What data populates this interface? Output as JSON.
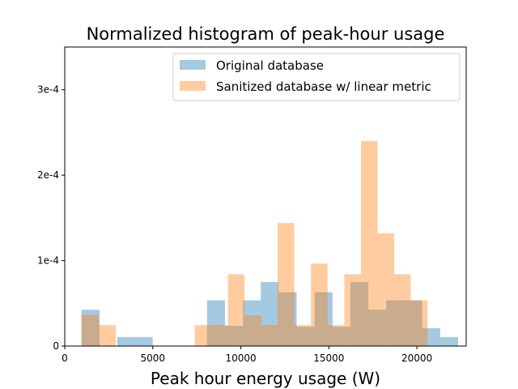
{
  "chart_data": {
    "type": "bar",
    "title": "Normalized histogram of peak-hour usage",
    "xlabel": "Peak hour energy usage (W)",
    "ylabel": "",
    "xlim": [
      0,
      22800
    ],
    "ylim": [
      0,
      0.00035
    ],
    "x_ticks": [
      0,
      5000,
      10000,
      15000,
      20000
    ],
    "x_tick_labels": [
      "0",
      "5000",
      "10000",
      "15000",
      "20000"
    ],
    "y_ticks": [
      0,
      0.0001,
      0.0002,
      0.0003
    ],
    "y_tick_labels": [
      "0",
      "1e-4",
      "2e-4",
      "3e-4"
    ],
    "legend_position": "top-right",
    "grid": false,
    "series": [
      {
        "name": "Original database",
        "color": "#1f77b4",
        "opacity": 0.4,
        "bins": [
          {
            "x0": 950,
            "x1": 1980,
            "value": 4.25e-05
          },
          {
            "x0": 2980,
            "x1": 5000,
            "value": 1.05e-05
          },
          {
            "x0": 8080,
            "x1": 9100,
            "value": 5.35e-05
          },
          {
            "x0": 9100,
            "x1": 10120,
            "value": 2.35e-05
          },
          {
            "x0": 10120,
            "x1": 11130,
            "value": 5.35e-05
          },
          {
            "x0": 11130,
            "x1": 12150,
            "value": 7.5e-05
          },
          {
            "x0": 12150,
            "x1": 13170,
            "value": 6.3e-05
          },
          {
            "x0": 13170,
            "x1": 14190,
            "value": 2.25e-05
          },
          {
            "x0": 14190,
            "x1": 15210,
            "value": 6.3e-05
          },
          {
            "x0": 15210,
            "x1": 16220,
            "value": 2.25e-05
          },
          {
            "x0": 16220,
            "x1": 17240,
            "value": 7.5e-05
          },
          {
            "x0": 17240,
            "x1": 18260,
            "value": 4.25e-05
          },
          {
            "x0": 18260,
            "x1": 19280,
            "value": 5.35e-05
          },
          {
            "x0": 19280,
            "x1": 20300,
            "value": 5.35e-05
          },
          {
            "x0": 20300,
            "x1": 21320,
            "value": 2.1e-05
          },
          {
            "x0": 21320,
            "x1": 22340,
            "value": 1.05e-05
          }
        ]
      },
      {
        "name": "Sanitized database w/ linear metric",
        "color": "#ff7f0e",
        "opacity": 0.4,
        "bins": [
          {
            "x0": 950,
            "x1": 1930,
            "value": 3.65e-05
          },
          {
            "x0": 1930,
            "x1": 2900,
            "value": 2.45e-05
          },
          {
            "x0": 7380,
            "x1": 8320,
            "value": 2.45e-05
          },
          {
            "x0": 8320,
            "x1": 9270,
            "value": 2.45e-05
          },
          {
            "x0": 9270,
            "x1": 10210,
            "value": 8.4e-05
          },
          {
            "x0": 10210,
            "x1": 11150,
            "value": 3.6e-05
          },
          {
            "x0": 11150,
            "x1": 12090,
            "value": 2.45e-05
          },
          {
            "x0": 12090,
            "x1": 13040,
            "value": 0.000144
          },
          {
            "x0": 13040,
            "x1": 13980,
            "value": 2.45e-05
          },
          {
            "x0": 13980,
            "x1": 14930,
            "value": 9.65e-05
          },
          {
            "x0": 14930,
            "x1": 15880,
            "value": 2.45e-05
          },
          {
            "x0": 15880,
            "x1": 16830,
            "value": 8.4e-05
          },
          {
            "x0": 16830,
            "x1": 17770,
            "value": 0.00024
          },
          {
            "x0": 17770,
            "x1": 18710,
            "value": 0.000132
          },
          {
            "x0": 18710,
            "x1": 19650,
            "value": 8.4e-05
          },
          {
            "x0": 19650,
            "x1": 20600,
            "value": 5.35e-05
          }
        ]
      }
    ]
  }
}
